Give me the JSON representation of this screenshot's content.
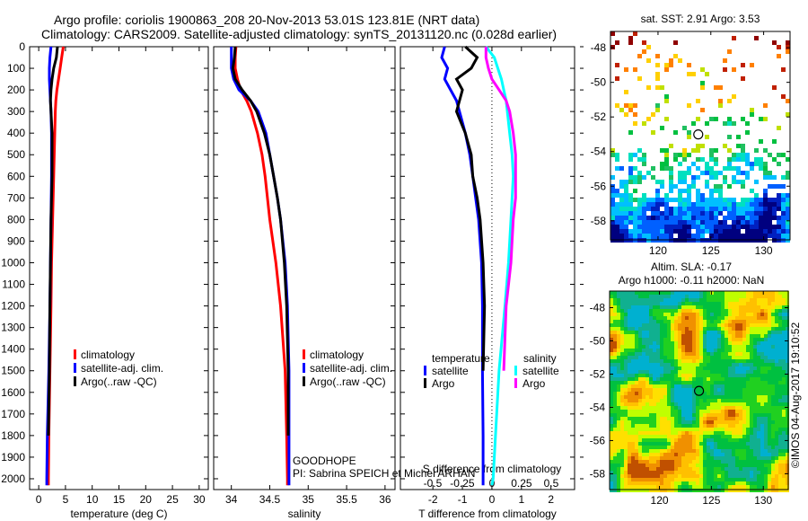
{
  "header": {
    "line1": "Argo profile: coriolis 1900863_208 20-Nov-2013 53.01S 123.81E (NRT data)",
    "line2": "Climatology: CARS2009. Satellite-adjusted climatology: synTS_20131120.nc (0.028d earlier)"
  },
  "chart_data": [
    {
      "type": "line",
      "name": "temperature",
      "xlabel": "temperature (deg C)",
      "xlim": [
        -1.7,
        31.7
      ],
      "ylim": [
        2050,
        0
      ],
      "xticks": [
        0,
        5,
        10,
        15,
        20,
        25,
        30
      ],
      "yticks": [
        0,
        100,
        200,
        300,
        400,
        500,
        600,
        700,
        800,
        900,
        1000,
        1100,
        1200,
        1300,
        1400,
        1500,
        1600,
        1700,
        1800,
        1900,
        2000
      ],
      "depth": [
        0,
        50,
        100,
        150,
        200,
        250,
        300,
        400,
        500,
        600,
        800,
        1000,
        1200,
        1500,
        1800,
        2000,
        2030
      ],
      "series": [
        {
          "name": "climatology",
          "color": "#ff0000",
          "values": [
            4.6,
            4.3,
            4.0,
            3.7,
            3.4,
            3.2,
            3.1,
            3.0,
            2.9,
            2.8,
            2.6,
            2.4,
            2.3,
            2.1,
            1.9,
            1.8,
            1.8
          ]
        },
        {
          "name": "satellite-adj. clim.",
          "color": "#0000ff",
          "values": [
            2.3,
            2.1,
            2.0,
            2.0,
            2.1,
            2.2,
            2.3,
            2.4,
            2.4,
            2.4,
            2.3,
            2.2,
            2.1,
            1.9,
            1.6,
            1.5,
            1.5
          ]
        },
        {
          "name": "Argo(..raw -QC)",
          "color": "#000000",
          "values": [
            3.5,
            3.3,
            2.8,
            2.5,
            2.3,
            2.2,
            2.3,
            2.5,
            2.5,
            2.5,
            2.3,
            2.2,
            2.1,
            2.0,
            1.8,
            null,
            null
          ]
        }
      ],
      "legend": [
        "climatology",
        "satellite-adj. clim.",
        "Argo(..raw -QC)"
      ]
    },
    {
      "type": "line",
      "name": "salinity",
      "xlabel": "salinity",
      "xlim": [
        33.77,
        36.13
      ],
      "ylim": [
        2050,
        0
      ],
      "xticks": [
        34,
        34.5,
        35,
        35.5,
        36
      ],
      "depth": [
        0,
        50,
        100,
        150,
        200,
        250,
        300,
        400,
        500,
        600,
        700,
        800,
        1000,
        1200,
        1500,
        1800,
        2000,
        2030
      ],
      "series": [
        {
          "name": "climatology",
          "color": "#ff0000",
          "values": [
            34.06,
            34.05,
            34.05,
            34.08,
            34.12,
            34.2,
            34.26,
            34.34,
            34.4,
            34.44,
            34.47,
            34.5,
            34.58,
            34.64,
            34.7,
            34.72,
            34.73,
            34.73
          ]
        },
        {
          "name": "satellite-adj. clim.",
          "color": "#0000ff",
          "values": [
            34.0,
            34.0,
            34.0,
            34.03,
            34.1,
            34.25,
            34.35,
            34.45,
            34.5,
            34.55,
            34.6,
            34.64,
            34.7,
            34.73,
            34.75,
            34.75,
            34.75,
            34.75
          ]
        },
        {
          "name": "Argo(..raw -QC)",
          "color": "#000000",
          "values": [
            34.05,
            34.04,
            34.02,
            34.05,
            34.14,
            34.25,
            34.33,
            34.43,
            34.5,
            34.55,
            34.6,
            34.64,
            34.69,
            34.72,
            34.74,
            34.74,
            null,
            null
          ]
        }
      ],
      "legend": [
        "climatology",
        "satellite-adj. clim.",
        "Argo(..raw -QC)"
      ],
      "annotation": [
        "GOODHOPE",
        "PI: Sabrina SPEICH et Michel ARHAN"
      ]
    },
    {
      "type": "line",
      "name": "difference",
      "xlabel": "T difference from climatology",
      "xlabel2": "S difference from climatology",
      "xlim": [
        -3.1,
        2.8
      ],
      "ylim": [
        2050,
        0
      ],
      "xticks": [
        -2,
        -1,
        0,
        1,
        2
      ],
      "xticks2": [
        "-0.5",
        "-0.25",
        "0",
        "0.25",
        "0.5"
      ],
      "xticks2_values": [
        -0.5,
        -0.25,
        0,
        0.25,
        0.5
      ],
      "depth": [
        0,
        50,
        100,
        150,
        200,
        250,
        300,
        400,
        500,
        600,
        700,
        800,
        1000,
        1200,
        1500,
        1800,
        2000,
        2030
      ],
      "series": [
        {
          "name": "temperature satellite",
          "color": "#0000ff",
          "var": "T",
          "values": [
            -1.6,
            -1.7,
            -1.5,
            -1.6,
            -1.4,
            -1.2,
            -1.1,
            -0.9,
            -0.75,
            -0.65,
            -0.55,
            -0.45,
            -0.35,
            -0.32,
            -0.32,
            -0.3,
            -0.3,
            -0.3
          ]
        },
        {
          "name": "temperature Argo",
          "color": "#000000",
          "var": "T",
          "values": [
            -0.9,
            -0.5,
            -0.7,
            -1.2,
            -1.0,
            -1.1,
            -1.2,
            -0.9,
            -0.7,
            -0.65,
            -0.5,
            -0.4,
            -0.3,
            -0.25,
            -0.3,
            null,
            null,
            null
          ]
        },
        {
          "name": "salinity satellite",
          "color": "#00ffff",
          "var": "S",
          "values": [
            -0.05,
            0.02,
            0.05,
            0.08,
            0.1,
            0.12,
            0.13,
            0.15,
            0.17,
            0.18,
            0.17,
            0.16,
            0.14,
            0.11,
            0.06,
            0.03,
            0.01,
            0.0
          ]
        },
        {
          "name": "salinity Argo",
          "color": "#ff00ff",
          "var": "S",
          "values": [
            -0.05,
            -0.05,
            -0.03,
            0.0,
            0.06,
            0.12,
            0.15,
            0.18,
            0.2,
            0.2,
            0.2,
            0.18,
            0.16,
            0.12,
            0.1,
            null,
            null,
            null
          ]
        }
      ],
      "legend": {
        "temperature_title": "temperature",
        "salinity_title": "salinity",
        "items": [
          "satellite",
          "Argo",
          "satellite",
          "Argo"
        ]
      }
    },
    {
      "type": "heatmap",
      "name": "sst-map",
      "title": "sat. SST: 2.91 Argo: 3.53",
      "xlim": [
        115.5,
        132.5
      ],
      "ylim": [
        -59.1,
        -47.06
      ],
      "xticks": [
        120,
        125,
        130
      ],
      "yticks": [
        -48,
        -50,
        -52,
        -54,
        -56,
        -58
      ],
      "marker": [
        123.81,
        -53.01
      ]
    },
    {
      "type": "heatmap",
      "name": "sla-map",
      "title": "Altim. SLA: -0.17",
      "subtitle": "Argo h1000: -0.11 h2000: NaN",
      "xlim": [
        115.2,
        132.4
      ],
      "ylim": [
        -58.95,
        -47.0
      ],
      "xticks": [
        120,
        125,
        130
      ],
      "yticks": [
        -48,
        -50,
        -52,
        -54,
        -56,
        -58
      ],
      "marker": [
        123.81,
        -53.01
      ],
      "credit": "©IMOS 04-Aug-2017 19:10:52"
    }
  ]
}
